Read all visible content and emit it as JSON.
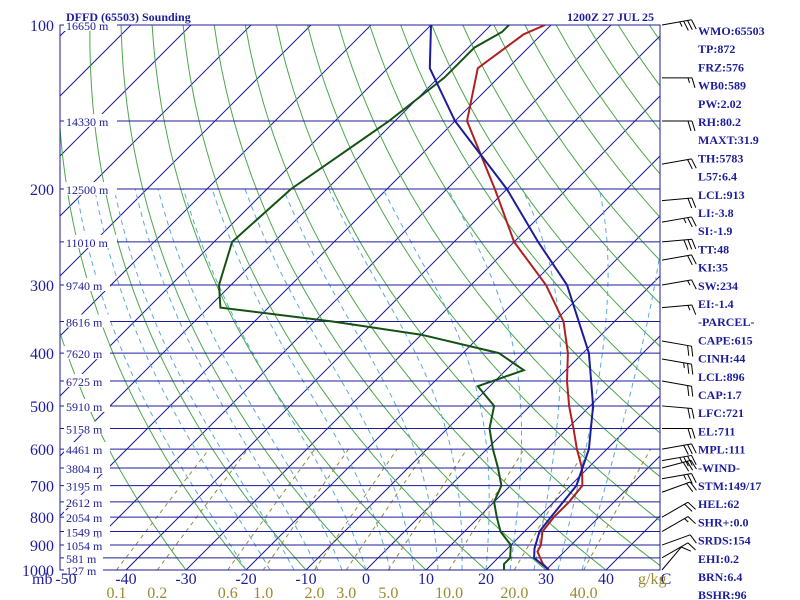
{
  "chart_data": {
    "type": "line",
    "title": "DFFD (65503) Sounding",
    "datetime": "1200Z 27 JUL 25",
    "ylabel": "mb",
    "xlabel2": "g/kg",
    "ylim": [
      1000,
      100
    ],
    "log_pressure": true,
    "xlim": [
      -50,
      50
    ],
    "colors": {
      "frame": "#1d1d9a",
      "isobar": "#1d1d9a",
      "isotherm": "#1d1d9a",
      "dry_adiabat": "#4aa84a",
      "moist_adiabat": "#5aaad6",
      "mixing_ratio": "#9a8a30",
      "temperature": "#b02020",
      "dewpoint": "#145214",
      "parcel": "#1d1d9a"
    },
    "pressure_ticks": [
      "100",
      "200",
      "300",
      "400",
      "500",
      "600",
      "700",
      "800",
      "900",
      "1000"
    ],
    "temperature_ticks": [
      "-50",
      "-40",
      "-30",
      "-20",
      "-10",
      "0",
      "10",
      "20",
      "30",
      "40",
      "C"
    ],
    "mixing_ratio_ticks": [
      "0.1",
      "0.2",
      "0.6",
      "1.0",
      "2.0",
      "3.0",
      "5.0",
      "10.0",
      "20.0",
      "40.0"
    ],
    "height_labels": [
      {
        "p": 100,
        "label": "16650 m"
      },
      {
        "p": 150,
        "label": "14330 m"
      },
      {
        "p": 200,
        "label": "12500 m"
      },
      {
        "p": 250,
        "label": "11010 m"
      },
      {
        "p": 300,
        "label": "9740 m"
      },
      {
        "p": 350,
        "label": "8616 m"
      },
      {
        "p": 400,
        "label": "7620 m"
      },
      {
        "p": 450,
        "label": "6725 m"
      },
      {
        "p": 500,
        "label": "5910 m"
      },
      {
        "p": 550,
        "label": "5158 m"
      },
      {
        "p": 600,
        "label": "4461 m"
      },
      {
        "p": 650,
        "label": "3804 m"
      },
      {
        "p": 700,
        "label": "3195 m"
      },
      {
        "p": 750,
        "label": "2612 m"
      },
      {
        "p": 800,
        "label": "2054 m"
      },
      {
        "p": 850,
        "label": "1549 m"
      },
      {
        "p": 900,
        "label": "1054 m"
      },
      {
        "p": 950,
        "label": "581 m"
      },
      {
        "p": 1000,
        "label": "127 m"
      }
    ],
    "series": [
      {
        "name": "Temperature",
        "points": [
          [
            1000,
            30.5
          ],
          [
            975,
            28.5
          ],
          [
            950,
            27.0
          ],
          [
            925,
            25.5
          ],
          [
            900,
            25.0
          ],
          [
            850,
            23.0
          ],
          [
            800,
            22.5
          ],
          [
            750,
            22.5
          ],
          [
            700,
            22.0
          ],
          [
            650,
            19.0
          ],
          [
            600,
            15.0
          ],
          [
            550,
            11.0
          ],
          [
            500,
            6.5
          ],
          [
            450,
            2.0
          ],
          [
            400,
            -2.5
          ],
          [
            350,
            -8.5
          ],
          [
            300,
            -17.5
          ],
          [
            250,
            -30.0
          ],
          [
            200,
            -42.0
          ],
          [
            150,
            -58.0
          ],
          [
            120,
            -65.0
          ],
          [
            104,
            -63.0
          ],
          [
            100,
            -61.0
          ]
        ]
      },
      {
        "name": "Dewpoint",
        "points": [
          [
            1000,
            23.0
          ],
          [
            975,
            22.0
          ],
          [
            950,
            22.0
          ],
          [
            925,
            21.0
          ],
          [
            900,
            20.0
          ],
          [
            850,
            16.0
          ],
          [
            800,
            13.0
          ],
          [
            750,
            10.0
          ],
          [
            700,
            8.5
          ],
          [
            650,
            5.0
          ],
          [
            600,
            1.0
          ],
          [
            550,
            -3.0
          ],
          [
            500,
            -6.0
          ],
          [
            460,
            -12.0
          ],
          [
            430,
            -7.0
          ],
          [
            400,
            -14.0
          ],
          [
            370,
            -30.0
          ],
          [
            350,
            -47.0
          ],
          [
            330,
            -68.0
          ],
          [
            300,
            -72.0
          ],
          [
            250,
            -77.0
          ],
          [
            200,
            -76.0
          ],
          [
            150,
            -71.0
          ],
          [
            125,
            -69.0
          ],
          [
            110,
            -69.0
          ],
          [
            103,
            -67.0
          ],
          [
            100,
            -67.0
          ]
        ]
      },
      {
        "name": "Parcel",
        "points": [
          [
            1000,
            30.5
          ],
          [
            950,
            26.0
          ],
          [
            913,
            24.5
          ],
          [
            850,
            22.5
          ],
          [
            800,
            22.0
          ],
          [
            700,
            21.0
          ],
          [
            600,
            17.0
          ],
          [
            500,
            10.5
          ],
          [
            400,
            1.0
          ],
          [
            300,
            -14.0
          ],
          [
            250,
            -26.0
          ],
          [
            200,
            -40.0
          ],
          [
            150,
            -60.0
          ],
          [
            120,
            -73.0
          ],
          [
            100,
            -80.0
          ]
        ]
      }
    ]
  },
  "index_panel": [
    "WMO:65503",
    "TP:872",
    "FRZ:576",
    "WB0:589",
    "PW:2.02",
    "RH:80.2",
    "MAXT:31.9",
    "TH:5783",
    "L57:6.4",
    "LCL:913",
    "LI:-3.8",
    "SI:-1.9",
    "TT:48",
    "KI:35",
    "SW:234",
    "EI:-1.4",
    "-PARCEL-",
    "CAPE:615",
    "CINH:44",
    "LCL:896",
    "CAP:1.7",
    "LFC:721",
    "EL:711",
    "MPL:111",
    "-WIND-",
    "STM:149/17",
    "HEL:62",
    "SHR+:0.0",
    "SRDS:154",
    "EHI:0.2",
    "BRN:6.4",
    "BSHR:96"
  ],
  "wind_barbs": [
    {
      "p": 100,
      "dir": 80,
      "spd": 35
    },
    {
      "p": 125,
      "dir": 90,
      "spd": 15
    },
    {
      "p": 150,
      "dir": 90,
      "spd": 20
    },
    {
      "p": 180,
      "dir": 80,
      "spd": 20
    },
    {
      "p": 210,
      "dir": 85,
      "spd": 20
    },
    {
      "p": 230,
      "dir": 80,
      "spd": 25
    },
    {
      "p": 250,
      "dir": 85,
      "spd": 30
    },
    {
      "p": 270,
      "dir": 80,
      "spd": 20
    },
    {
      "p": 300,
      "dir": 80,
      "spd": 15
    },
    {
      "p": 330,
      "dir": 85,
      "spd": 15
    },
    {
      "p": 380,
      "dir": 100,
      "spd": 20
    },
    {
      "p": 410,
      "dir": 100,
      "spd": 25
    },
    {
      "p": 450,
      "dir": 100,
      "spd": 20
    },
    {
      "p": 500,
      "dir": 95,
      "spd": 20
    },
    {
      "p": 550,
      "dir": 90,
      "spd": 20
    },
    {
      "p": 600,
      "dir": 80,
      "spd": 30
    },
    {
      "p": 630,
      "dir": 80,
      "spd": 35
    },
    {
      "p": 650,
      "dir": 75,
      "spd": 30
    },
    {
      "p": 680,
      "dir": 80,
      "spd": 25
    },
    {
      "p": 720,
      "dir": 70,
      "spd": 20
    },
    {
      "p": 800,
      "dir": 60,
      "spd": 20
    },
    {
      "p": 850,
      "dir": 60,
      "spd": 15
    },
    {
      "p": 900,
      "dir": 70,
      "spd": 10
    },
    {
      "p": 950,
      "dir": 60,
      "spd": 10
    },
    {
      "p": 1000,
      "dir": 40,
      "spd": 10
    }
  ]
}
